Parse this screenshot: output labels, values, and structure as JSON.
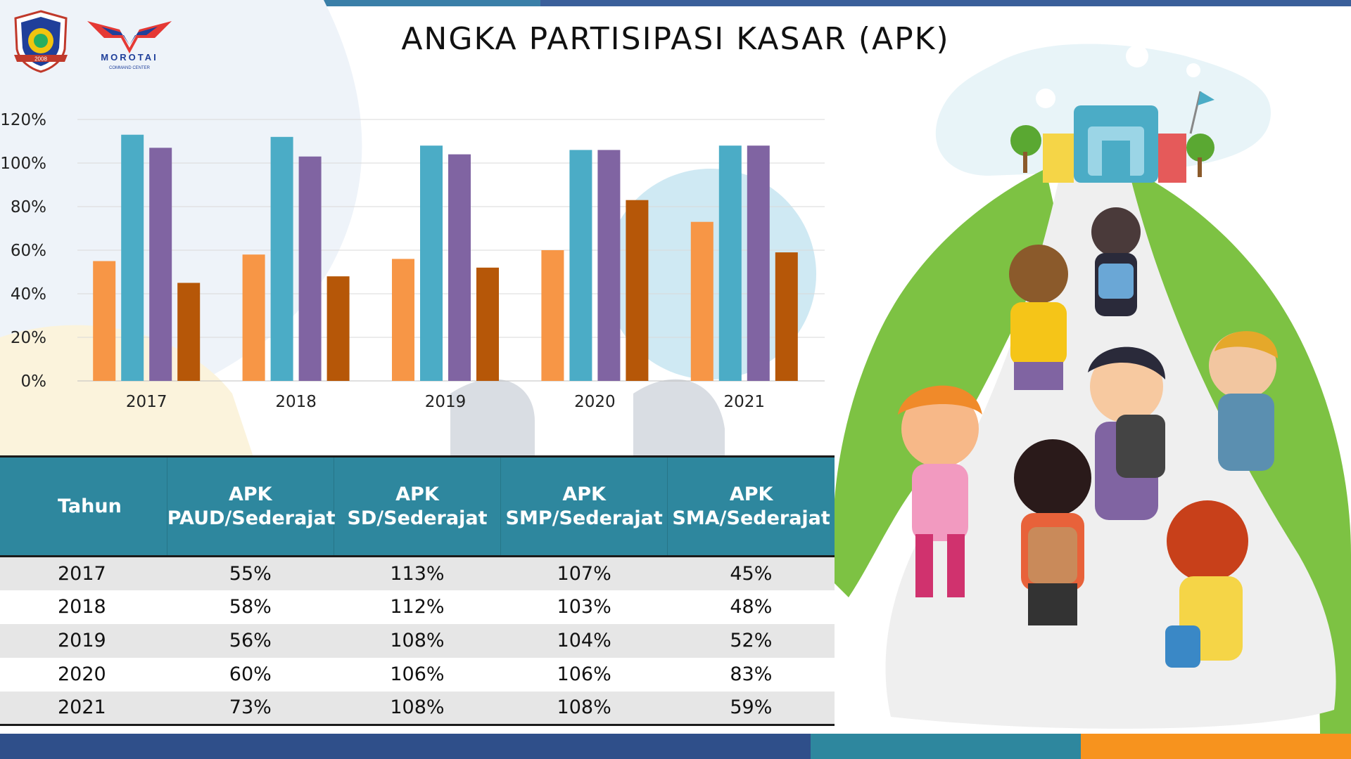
{
  "title": "ANGKA PARTISIPASI KASAR (APK)",
  "logos": {
    "seal_text": "2008",
    "morotai_name": "MOROTAI",
    "morotai_sub": "COMMAND CENTER"
  },
  "colors": {
    "paud": "#f79646",
    "sd": "#4bacc6",
    "smp": "#8064a2",
    "sma": "#b65708",
    "header": "#2e879e"
  },
  "chart_data": {
    "type": "bar",
    "categories": [
      "2017",
      "2018",
      "2019",
      "2020",
      "2021"
    ],
    "series": [
      {
        "name": "APK PAUD/Sederajat",
        "values": [
          55,
          58,
          56,
          60,
          73
        ]
      },
      {
        "name": "APK SD/Sederajat",
        "values": [
          113,
          112,
          108,
          106,
          108
        ]
      },
      {
        "name": "APK SMP/Sederajat",
        "values": [
          107,
          103,
          104,
          106,
          108
        ]
      },
      {
        "name": "APK SMA/Sederajat",
        "values": [
          45,
          48,
          52,
          83,
          59
        ]
      }
    ],
    "yticks": [
      "0%",
      "20%",
      "40%",
      "60%",
      "80%",
      "100%",
      "120%"
    ],
    "ylim": [
      0,
      120
    ],
    "title": "",
    "xlabel": "",
    "ylabel": ""
  },
  "table": {
    "headers": [
      {
        "line1": "Tahun",
        "line2": ""
      },
      {
        "line1": "APK",
        "line2": "PAUD/Sederajat"
      },
      {
        "line1": "APK",
        "line2": "SD/Sederajat"
      },
      {
        "line1": "APK",
        "line2": "SMP/Sederajat"
      },
      {
        "line1": "APK",
        "line2": "SMA/Sederajat"
      }
    ],
    "rows": [
      [
        "2017",
        "55%",
        "113%",
        "107%",
        "45%"
      ],
      [
        "2018",
        "58%",
        "112%",
        "103%",
        "48%"
      ],
      [
        "2019",
        "56%",
        "108%",
        "104%",
        "52%"
      ],
      [
        "2020",
        "60%",
        "106%",
        "106%",
        "83%"
      ],
      [
        "2021",
        "73%",
        "108%",
        "108%",
        "59%"
      ]
    ]
  }
}
